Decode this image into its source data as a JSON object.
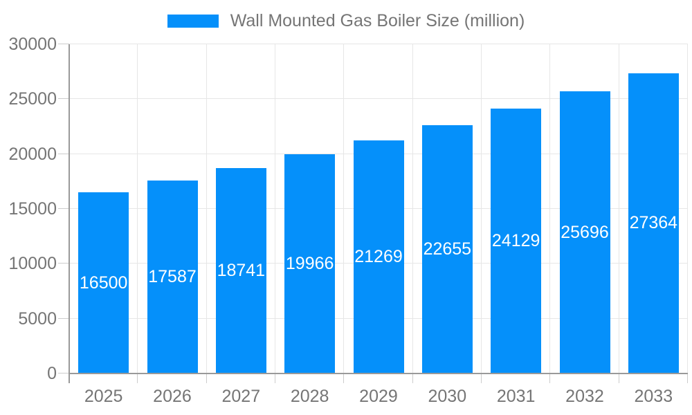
{
  "legend": {
    "label": "Wall Mounted Gas Boiler Size (million)"
  },
  "colors": {
    "bar": "#0590fa",
    "bar_label": "#ffffff",
    "axis_line": "#999999",
    "tick": "#cccccc",
    "grid": "#e6e6e6",
    "text": "#757575",
    "background": "#ffffff"
  },
  "chart_data": {
    "type": "bar",
    "title": "Wall Mounted Gas Boiler Size (million)",
    "series_name": "Wall Mounted Gas Boiler Size (million)",
    "categories": [
      "2025",
      "2026",
      "2027",
      "2028",
      "2029",
      "2030",
      "2031",
      "2032",
      "2033"
    ],
    "values": [
      16500,
      17587,
      18741,
      19966,
      21269,
      22655,
      24129,
      25696,
      27364
    ],
    "data_labels": [
      "16500",
      "17587",
      "18741",
      "19966",
      "21269",
      "22655",
      "24129",
      "25696",
      "27364"
    ],
    "xlabel": "",
    "ylabel": "",
    "ylim": [
      0,
      30000
    ],
    "ytick_step": 5000,
    "yticks": [
      0,
      5000,
      10000,
      15000,
      20000,
      25000,
      30000
    ],
    "grid": true,
    "legend_position": "top",
    "data_labels_position": "center-inside",
    "bar_label_color": "white"
  }
}
